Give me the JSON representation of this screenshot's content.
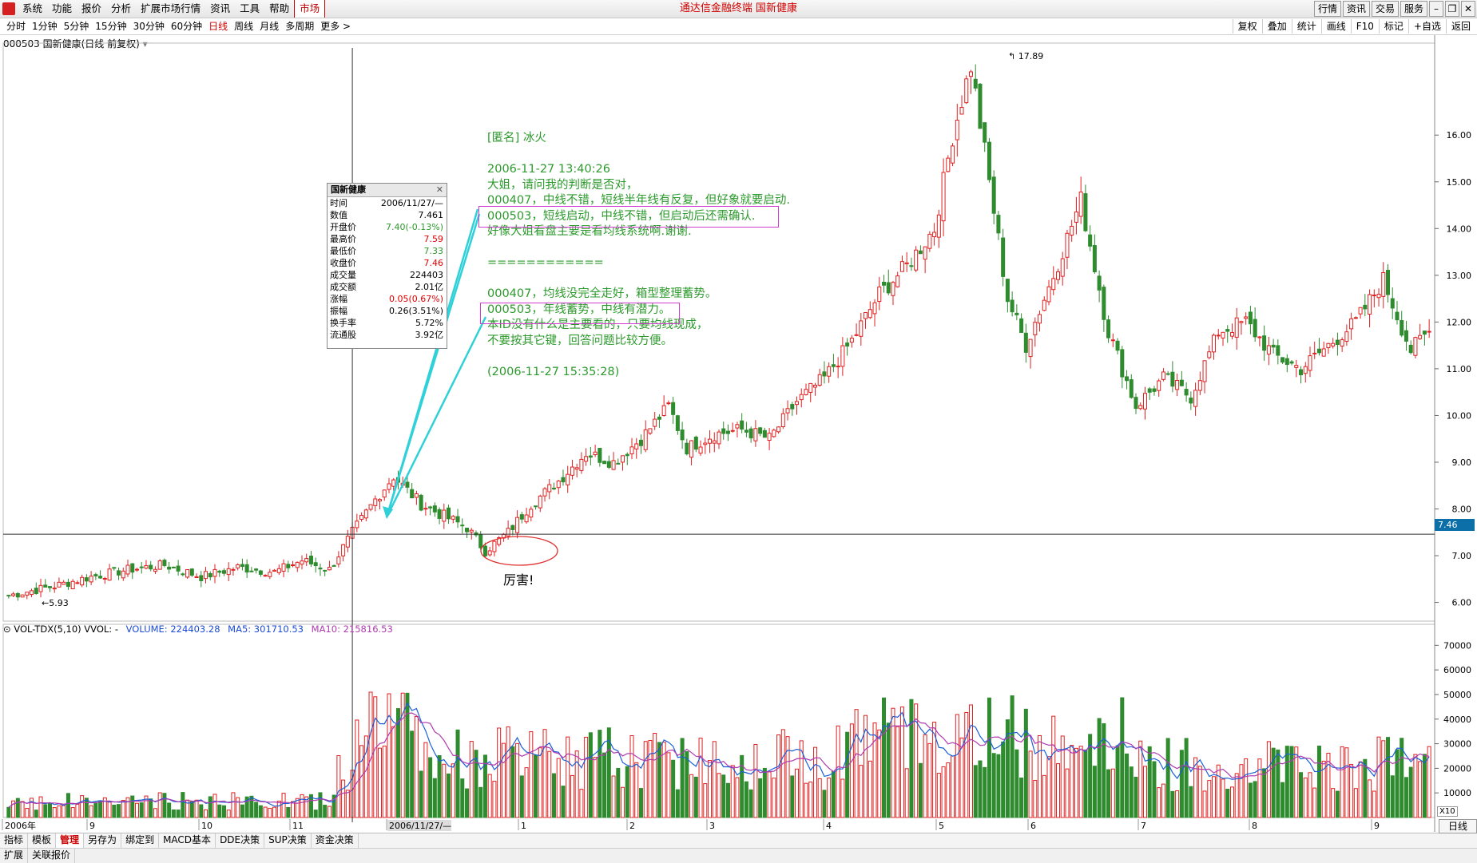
{
  "menu": {
    "items": [
      "系统",
      "功能",
      "报价",
      "分析",
      "扩展市场行情",
      "资讯",
      "工具",
      "帮助"
    ],
    "market_tab": "市场",
    "app_title": "通达信金融终端  国新健康",
    "right_buttons": [
      "行情",
      "资讯",
      "交易",
      "服务"
    ]
  },
  "periods": {
    "items": [
      "分时",
      "1分钟",
      "5分钟",
      "15分钟",
      "30分钟",
      "60分钟",
      "日线",
      "周线",
      "月线",
      "多周期",
      "更多 >"
    ],
    "active": "日线"
  },
  "tools": [
    "复权",
    "叠加",
    "统计",
    "画线",
    "F10",
    "标记",
    "+自选",
    "返回"
  ],
  "stock": {
    "title": "000503 国新健康(日线 前复权)"
  },
  "infobox": {
    "title": "国新健康",
    "rows": [
      {
        "label": "时间",
        "value": "2006/11/27/—",
        "color": "#000"
      },
      {
        "label": "数值",
        "value": "7.461",
        "color": "#000"
      },
      {
        "label": "开盘价",
        "value": "7.40(-0.13%)",
        "color": "#2c9a2c"
      },
      {
        "label": "最高价",
        "value": "7.59",
        "color": "#e00000"
      },
      {
        "label": "最低价",
        "value": "7.33",
        "color": "#2c9a2c"
      },
      {
        "label": "收盘价",
        "value": "7.46",
        "color": "#e00000"
      },
      {
        "label": "成交量",
        "value": "224403",
        "color": "#000"
      },
      {
        "label": "成交额",
        "value": "2.01亿",
        "color": "#000"
      },
      {
        "label": "涨幅",
        "value": "0.05(0.67%)",
        "color": "#e00000"
      },
      {
        "label": "振幅",
        "value": "0.26(3.51%)",
        "color": "#000"
      },
      {
        "label": "换手率",
        "value": "5.72%",
        "color": "#000"
      },
      {
        "label": "流通股",
        "value": "3.92亿",
        "color": "#000"
      }
    ]
  },
  "annotation": {
    "lines": [
      "[匿名] 冰火",
      "",
      "2006-11-27 13:40:26",
      "大姐，请问我的判断是否对，",
      "000407，中线不错，短线半年线有反复，但好象就要启动.",
      "000503，短线启动，中线不错，但启动后还需确认.",
      "好像大姐看盘主要是看均线系统啊.谢谢.",
      "",
      "============",
      "",
      "000407，均线没完全走好，箱型整理蓄势。",
      "000503，年线蓄势，中线有潜力。",
      "本ID没有什么是主要看的，只要均线现成，",
      "不要按其它键，回答问题比较方便。",
      "",
      "(2006-11-27 15:35:28)"
    ],
    "note": "厉害!"
  },
  "chart_data": [
    {
      "type": "candlestick",
      "title": "000503 国新健康(日线 前复权)",
      "y_ticks": [
        6.0,
        7.0,
        8.0,
        9.0,
        10.0,
        11.0,
        12.0,
        13.0,
        14.0,
        15.0,
        16.0
      ],
      "ylim": [
        5.6,
        17.9
      ],
      "max_label": "17.89",
      "min_label": "5.93",
      "current_price": "7.46",
      "x_labels": [
        "2006年",
        "9",
        "10",
        "11",
        "2006/11/27/—",
        "1",
        "2",
        "3",
        "4",
        "5",
        "6",
        "7",
        "8",
        "9",
        "日线"
      ],
      "anchor_points": [
        {
          "i": 0,
          "close": 6.15
        },
        {
          "i": 10,
          "close": 6.35
        },
        {
          "i": 18,
          "close": 6.55
        },
        {
          "i": 26,
          "close": 6.7
        },
        {
          "i": 34,
          "close": 6.8
        },
        {
          "i": 42,
          "close": 6.55
        },
        {
          "i": 50,
          "close": 6.75
        },
        {
          "i": 58,
          "close": 6.65
        },
        {
          "i": 64,
          "close": 6.9
        },
        {
          "i": 70,
          "close": 6.7
        },
        {
          "i": 75,
          "close": 7.5
        },
        {
          "i": 80,
          "close": 8.2
        },
        {
          "i": 84,
          "close": 8.7
        },
        {
          "i": 90,
          "close": 8.1
        },
        {
          "i": 96,
          "close": 7.8
        },
        {
          "i": 100,
          "close": 7.6
        },
        {
          "i": 104,
          "close": 7.1
        },
        {
          "i": 109,
          "close": 7.5
        },
        {
          "i": 114,
          "close": 8.1
        },
        {
          "i": 120,
          "close": 8.6
        },
        {
          "i": 126,
          "close": 9.2
        },
        {
          "i": 132,
          "close": 9.0
        },
        {
          "i": 138,
          "close": 9.5
        },
        {
          "i": 144,
          "close": 10.2
        },
        {
          "i": 148,
          "close": 9.3
        },
        {
          "i": 154,
          "close": 9.6
        },
        {
          "i": 160,
          "close": 9.7
        },
        {
          "i": 166,
          "close": 9.5
        },
        {
          "i": 172,
          "close": 10.3
        },
        {
          "i": 178,
          "close": 10.8
        },
        {
          "i": 184,
          "close": 11.6
        },
        {
          "i": 190,
          "close": 12.6
        },
        {
          "i": 196,
          "close": 13.2
        },
        {
          "i": 202,
          "close": 14.0
        },
        {
          "i": 206,
          "close": 16.0
        },
        {
          "i": 210,
          "close": 17.5
        },
        {
          "i": 214,
          "close": 15.0
        },
        {
          "i": 218,
          "close": 12.5
        },
        {
          "i": 222,
          "close": 11.5
        },
        {
          "i": 228,
          "close": 13.0
        },
        {
          "i": 234,
          "close": 14.6
        },
        {
          "i": 240,
          "close": 11.8
        },
        {
          "i": 246,
          "close": 10.2
        },
        {
          "i": 252,
          "close": 10.8
        },
        {
          "i": 258,
          "close": 10.4
        },
        {
          "i": 264,
          "close": 11.8
        },
        {
          "i": 270,
          "close": 12.0
        },
        {
          "i": 276,
          "close": 11.3
        },
        {
          "i": 282,
          "close": 11.0
        },
        {
          "i": 288,
          "close": 11.5
        },
        {
          "i": 294,
          "close": 12.0
        },
        {
          "i": 300,
          "close": 12.9
        },
        {
          "i": 306,
          "close": 11.4
        },
        {
          "i": 310,
          "close": 11.8
        }
      ]
    },
    {
      "type": "bar",
      "title": "VOL-TDX(5,10) VVOL: -",
      "legend": [
        {
          "name": "VOLUME: 224403.28",
          "color": "#1a4bd8"
        },
        {
          "name": "MA5: 301710.53",
          "color": "#1a4bd8"
        },
        {
          "name": "MA10: 215816.53",
          "color": "#b03ab0"
        }
      ],
      "y_ticks": [
        10000,
        20000,
        30000,
        40000,
        50000,
        60000,
        70000
      ],
      "ylim": [
        0,
        74000
      ],
      "unit_label": "X10"
    }
  ],
  "bottom": {
    "tabs": [
      "指标",
      "模板",
      "管理",
      "另存为",
      "绑定到",
      "MACD基本",
      "DDE决策",
      "SUP决策",
      "资金决策"
    ],
    "selected": "管理",
    "row2": [
      "扩展",
      "关联报价"
    ],
    "right_button": "日线"
  },
  "colors": {
    "up": "#e02020",
    "down": "#2e8b2e",
    "ma5": "#1a5fd8",
    "ma10": "#b03ab0",
    "cyan": "#30d0d8"
  }
}
